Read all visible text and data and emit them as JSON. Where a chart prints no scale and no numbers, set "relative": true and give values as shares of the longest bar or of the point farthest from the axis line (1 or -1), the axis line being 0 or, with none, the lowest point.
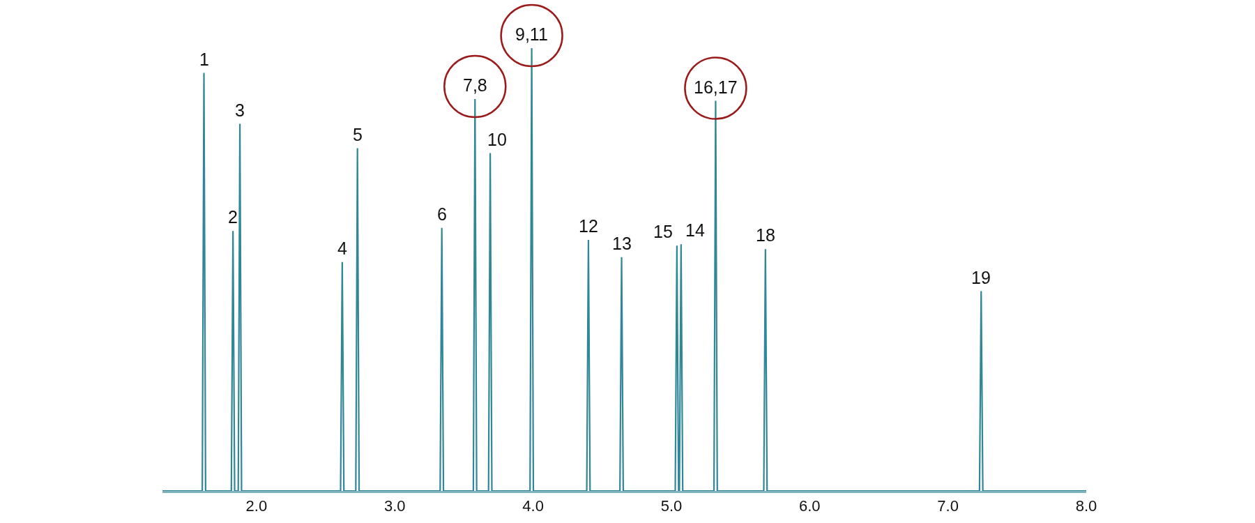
{
  "chart_data": {
    "type": "line",
    "relative": true,
    "color": "#2f8797",
    "line_style": "solid",
    "marker": "none",
    "x": [
      1.32,
      1.608,
      1.62,
      1.632,
      1.818,
      1.83,
      1.842,
      1.868,
      1.88,
      1.892,
      2.608,
      2.62,
      2.632,
      2.718,
      2.73,
      2.742,
      3.328,
      3.34,
      3.352,
      3.568,
      3.58,
      3.592,
      3.678,
      3.69,
      3.702,
      3.978,
      3.99,
      4.002,
      4.388,
      4.4,
      4.412,
      4.628,
      4.64,
      4.652,
      5.028,
      5.04,
      5.052,
      5.058,
      5.07,
      5.082,
      5.308,
      5.32,
      5.332,
      5.668,
      5.68,
      5.692,
      7.228,
      7.24,
      7.252,
      8.0
    ],
    "values": [
      0,
      0,
      0.944,
      0,
      0,
      0.587,
      0,
      0,
      0.829,
      0,
      0,
      0.517,
      0,
      0,
      0.774,
      0,
      0,
      0.594,
      0,
      0,
      0.885,
      0,
      0,
      0.763,
      0,
      0,
      1,
      0,
      0,
      0.567,
      0,
      0,
      0.528,
      0,
      0,
      0.554,
      0,
      0,
      0.557,
      0,
      0,
      0.881,
      0,
      0,
      0.546,
      0,
      0,
      0.451,
      0,
      0
    ],
    "xlim": [
      1.32,
      8.0
    ],
    "xticks": [
      {
        "value": 2,
        "label": "2.0"
      },
      {
        "value": 3,
        "label": "3.0"
      },
      {
        "value": 4,
        "label": "4.0"
      },
      {
        "value": 5,
        "label": "5.0"
      },
      {
        "value": 6,
        "label": "6.0"
      },
      {
        "value": 7,
        "label": "7.0"
      },
      {
        "value": 8,
        "label": "8.0"
      }
    ],
    "tick_labels": "x",
    "annotations": [
      {
        "text": "1",
        "x": 1.62,
        "y": 0.944
      },
      {
        "text": "2",
        "x": 1.83,
        "y": 0.587
      },
      {
        "text": "3",
        "x": 1.88,
        "y": 0.829
      },
      {
        "text": "4",
        "x": 2.62,
        "y": 0.517
      },
      {
        "text": "5",
        "x": 2.73,
        "y": 0.774
      },
      {
        "text": "6",
        "x": 3.34,
        "y": 0.594
      },
      {
        "text": "7,8",
        "x": 3.58,
        "y": 0.885
      },
      {
        "text": "10",
        "x": 3.69,
        "y": 0.763
      },
      {
        "text": "9,11",
        "x": 3.99,
        "y": 1
      },
      {
        "text": "12",
        "x": 4.4,
        "y": 0.567
      },
      {
        "text": "13",
        "x": 4.64,
        "y": 0.528
      },
      {
        "text": "15",
        "x": 5.04,
        "y": 0.554
      },
      {
        "text": "14",
        "x": 5.07,
        "y": 0.557
      },
      {
        "text": "16,17",
        "x": 5.32,
        "y": 0.881
      },
      {
        "text": "18",
        "x": 5.68,
        "y": 0.546
      },
      {
        "text": "19",
        "x": 7.24,
        "y": 0.451
      }
    ]
  }
}
